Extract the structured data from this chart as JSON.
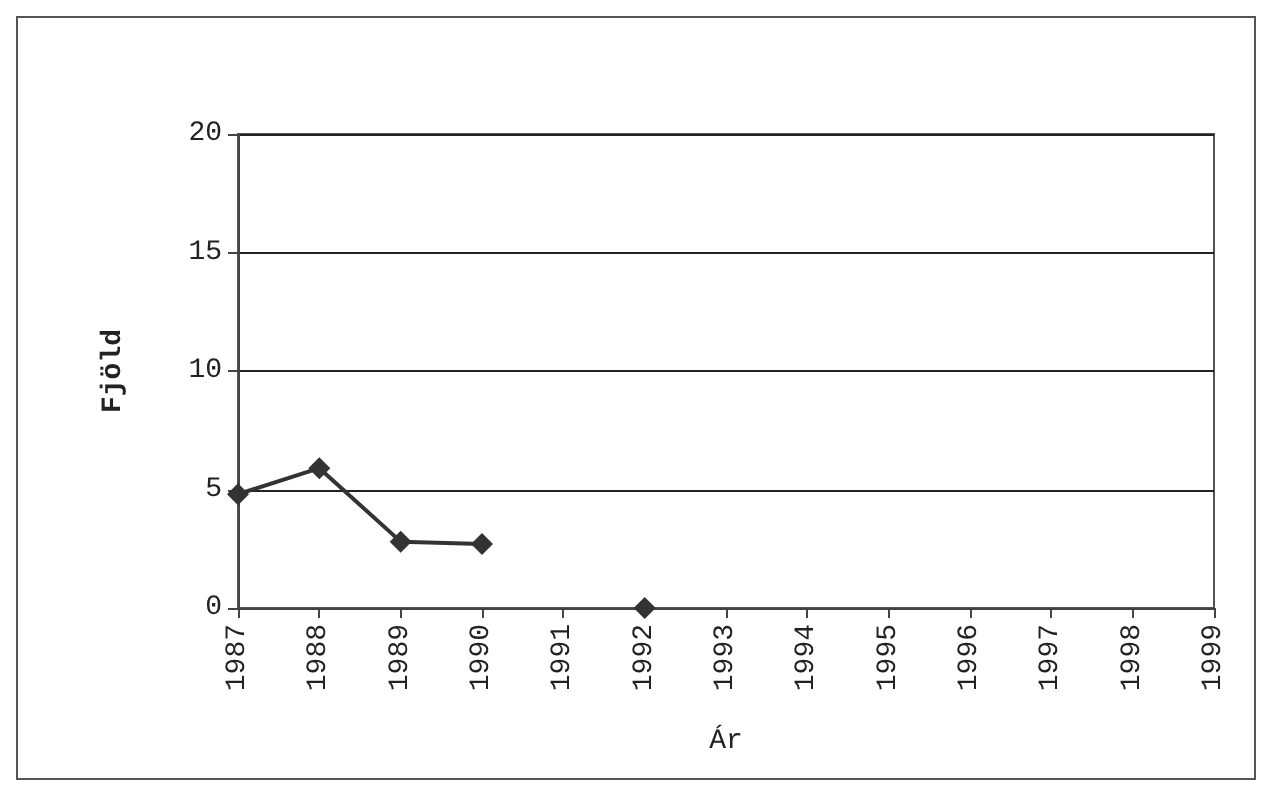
{
  "chart_data": {
    "type": "line",
    "xlabel": "Ár",
    "ylabel": "Fjöld",
    "categories": [
      "1987",
      "1988",
      "1989",
      "1990",
      "1991",
      "1992",
      "1993",
      "1994",
      "1995",
      "1996",
      "1997",
      "1998",
      "1999"
    ],
    "series": [
      {
        "color": "#333333",
        "values": [
          4.8,
          5.9,
          2.8,
          2.7,
          null,
          0,
          null,
          null,
          null,
          null,
          null,
          null,
          null
        ]
      }
    ],
    "ylim": [
      0,
      20
    ],
    "yticks": [
      0,
      5,
      10,
      15,
      20
    ],
    "grid": "y",
    "marker": "diamond",
    "line_style": "solid"
  }
}
